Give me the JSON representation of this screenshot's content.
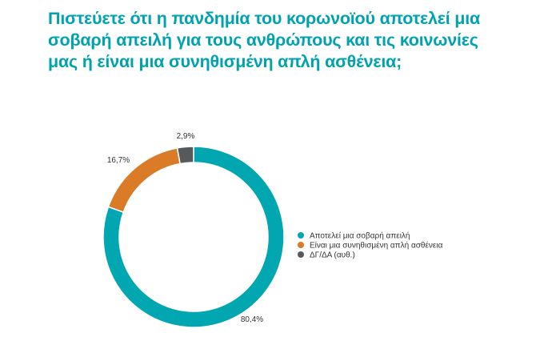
{
  "chart_data": {
    "type": "pie",
    "donut": true,
    "title": "Πιστεύετε ότι η πανδημία του κορωνοϊού αποτελεί μια σοβαρή απειλή για τους ανθρώπους και τις κοινωνίες μας ή είναι μια συνηθισμένη απλή ασθένεια;",
    "categories": [
      "Αποτελεί μια σοβαρή απειλή",
      "Είναι μια συνηθισμένη απλή ασθένεια",
      "ΔΓ/ΔΑ (αυθ.)"
    ],
    "values": [
      80.4,
      16.7,
      2.9
    ],
    "data_labels": [
      "80,4%",
      "16,7%",
      "2,9%"
    ],
    "colors": [
      "#00a6b0",
      "#d97b27",
      "#58595b"
    ],
    "legend_position": "right"
  }
}
